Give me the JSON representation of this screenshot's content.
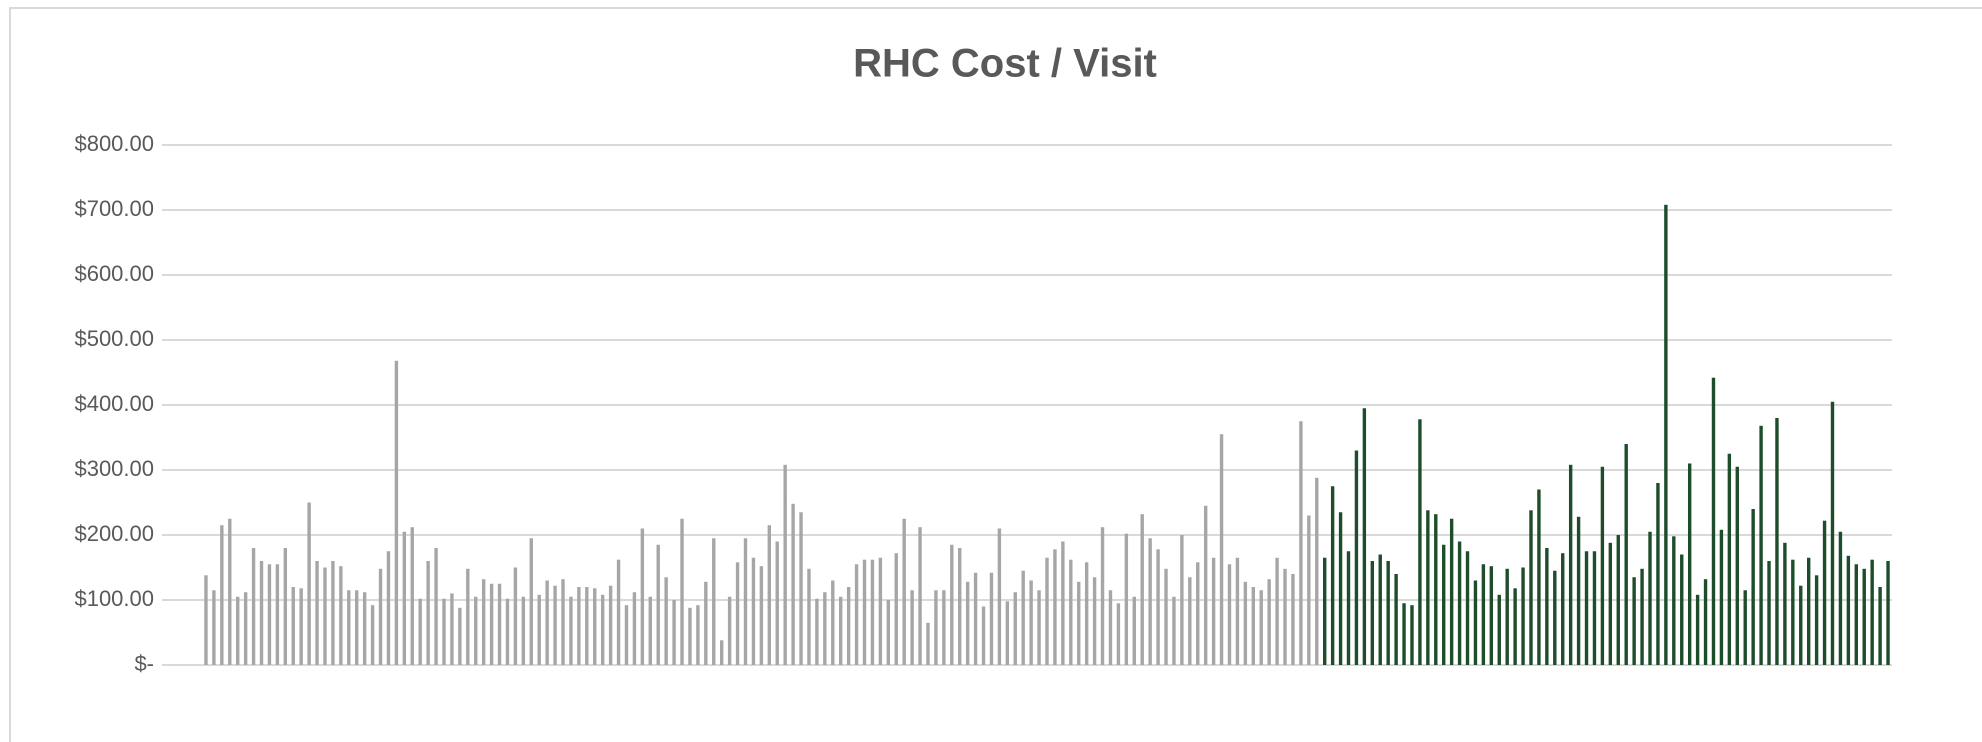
{
  "chart_data": {
    "type": "bar",
    "title": "RHC Cost / Visit",
    "ylim": [
      0,
      800
    ],
    "yticks": [
      {
        "value": 0,
        "label": "$-"
      },
      {
        "value": 100,
        "label": "$100.00"
      },
      {
        "value": 200,
        "label": "$200.00"
      },
      {
        "value": 300,
        "label": "$300.00"
      },
      {
        "value": 400,
        "label": "$400.00"
      },
      {
        "value": 500,
        "label": "$500.00"
      },
      {
        "value": 600,
        "label": "$600.00"
      },
      {
        "value": 700,
        "label": "$700.00"
      },
      {
        "value": 800,
        "label": "$800.00"
      }
    ],
    "grid": true,
    "series": [
      {
        "color": "#a6a6a6",
        "values": [
          138,
          115,
          215,
          225,
          105,
          112,
          180,
          160,
          155,
          155,
          180,
          120,
          118,
          250,
          160,
          150,
          160,
          152,
          115,
          115,
          112,
          92,
          148,
          175,
          468,
          205,
          212,
          102,
          160,
          180,
          102,
          110,
          88,
          148,
          105,
          132,
          125,
          125,
          102,
          150,
          105,
          195,
          108,
          130,
          122,
          132,
          105,
          120,
          120,
          118,
          108,
          122,
          162,
          92,
          112,
          210,
          105,
          185,
          135,
          100,
          225,
          88,
          92,
          128,
          195,
          38,
          105,
          158,
          195,
          165,
          152,
          215,
          190,
          308,
          248,
          235,
          148,
          102,
          112,
          130,
          105,
          120,
          155,
          162,
          162,
          165,
          100,
          172,
          225,
          115,
          212,
          65,
          115,
          115,
          185,
          180,
          128,
          142,
          90,
          142,
          210,
          98,
          112,
          145,
          130,
          115,
          165,
          178,
          190,
          162,
          128,
          158,
          135,
          212,
          115,
          95,
          202,
          105,
          232,
          195,
          178,
          148,
          105,
          200,
          135,
          158,
          245,
          165,
          355,
          155,
          165,
          128,
          120,
          115,
          132,
          165,
          148,
          140,
          375,
          230,
          288
        ]
      },
      {
        "color": "#1e4d2b",
        "values": [
          165,
          275,
          235,
          175,
          330,
          395,
          160,
          170,
          160,
          140,
          95,
          92,
          378,
          238,
          232,
          185,
          225,
          190,
          175,
          130,
          155,
          152,
          108,
          148,
          118,
          150,
          238,
          270,
          180,
          145,
          172,
          308,
          228,
          175,
          175,
          305,
          188,
          200,
          340,
          135,
          148,
          205,
          280,
          708,
          198,
          170,
          310,
          108,
          132,
          442,
          208,
          325,
          305,
          115,
          240,
          368,
          160,
          380,
          188,
          162,
          122,
          165,
          138,
          222,
          405,
          205,
          168,
          155,
          148,
          162,
          120,
          160
        ]
      }
    ]
  }
}
